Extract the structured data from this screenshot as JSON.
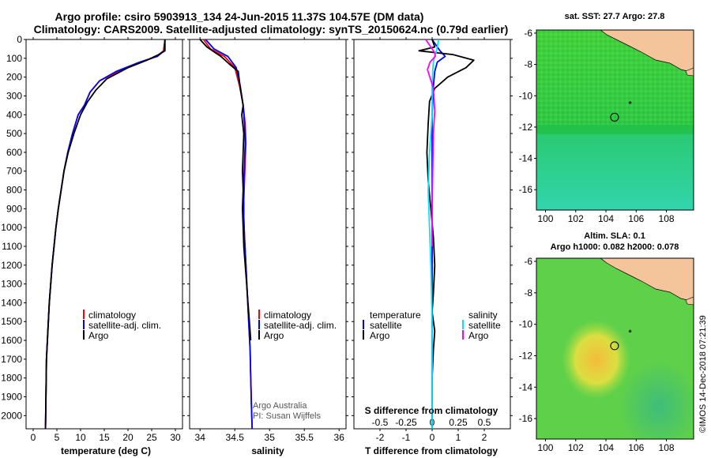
{
  "header": {
    "title_line1": "Argo profile: csiro 5903913_134 24-Jun-2015 11.37S 104.57E (DM data)",
    "title_line2": "Climatology: CARS2009. Satellite-adjusted climatology: synTS_20150624.nc (0.79d earlier)"
  },
  "colors": {
    "climatology": "#ff0000",
    "satellite_adj": "#0000ff",
    "argo": "#000000",
    "salinity_satellite": "#00e5ff",
    "salinity_argo": "#ff00ff",
    "land": "#f4c49a"
  },
  "footer": {
    "credit": "Argo Australia",
    "pi": "PI: Susan Wijffels",
    "stamp": "©IMOS 14-Dec-2018 07:21:39"
  },
  "chart_data": [
    {
      "type": "line",
      "panel": "temperature",
      "xlabel": "temperature (deg C)",
      "ylabel": "",
      "xlim": [
        -1.5,
        31.5
      ],
      "ylim": [
        2070,
        0
      ],
      "xticks": [
        0,
        5,
        10,
        15,
        20,
        25,
        30
      ],
      "yticks": [
        0,
        100,
        200,
        300,
        400,
        500,
        600,
        700,
        800,
        900,
        1000,
        1100,
        1200,
        1300,
        1400,
        1500,
        1600,
        1700,
        1800,
        1900,
        2000
      ],
      "legend": [
        "climatology",
        "satellite-adj. clim.",
        "Argo"
      ],
      "legend_position": "lower-right",
      "series": [
        {
          "name": "climatology",
          "color": "#ff0000",
          "x": [
            27.8,
            27.5,
            26,
            23,
            18,
            14,
            12,
            10.8,
            9.5,
            8.3,
            7.3,
            6.5,
            5.9,
            5.3,
            4.8,
            4.4,
            4.0,
            3.7,
            3.4,
            3.2,
            3.0,
            2.8,
            2.6
          ],
          "y": [
            0,
            60,
            90,
            120,
            170,
            220,
            280,
            350,
            400,
            500,
            600,
            700,
            800,
            900,
            1000,
            1100,
            1200,
            1300,
            1400,
            1500,
            1600,
            1700,
            2070
          ]
        },
        {
          "name": "satellite-adj. clim.",
          "color": "#0000ff",
          "x": [
            27.8,
            27.6,
            26.2,
            22.5,
            17.5,
            14,
            12,
            10.8,
            9.5,
            8.3,
            7.3,
            6.5,
            5.9,
            5.3,
            4.8,
            4.4,
            4.0,
            3.7,
            3.4,
            3.2,
            3.0,
            2.8,
            2.6
          ],
          "y": [
            0,
            60,
            90,
            120,
            170,
            220,
            280,
            350,
            400,
            500,
            600,
            700,
            800,
            900,
            1000,
            1100,
            1200,
            1300,
            1400,
            1500,
            1600,
            1700,
            2070
          ]
        },
        {
          "name": "Argo",
          "color": "#000000",
          "x": [
            27.8,
            27.8,
            26.5,
            24,
            20,
            15.5,
            13.2,
            11.5,
            10.0,
            8.6,
            7.4,
            6.5,
            5.9,
            5.3,
            4.8,
            4.4,
            4.0,
            3.7,
            3.4,
            3.2,
            3.0,
            2.8,
            2.6
          ],
          "y": [
            0,
            60,
            80,
            110,
            150,
            210,
            270,
            330,
            400,
            500,
            600,
            700,
            800,
            900,
            1000,
            1100,
            1200,
            1300,
            1400,
            1500,
            1600,
            1700,
            2070
          ]
        }
      ]
    },
    {
      "type": "line",
      "panel": "salinity",
      "xlabel": "salinity",
      "ylabel": "",
      "xlim": [
        33.85,
        36.1
      ],
      "ylim": [
        2070,
        0
      ],
      "xticks": [
        34,
        34.5,
        35,
        35.5,
        36
      ],
      "xtick_labels": [
        "34",
        "34.5",
        "35",
        "35.5",
        "36"
      ],
      "legend": [
        "climatology",
        "satellite-adj. clim.",
        "Argo"
      ],
      "legend_position": "lower-right",
      "series": [
        {
          "name": "climatology",
          "color": "#ff0000",
          "x": [
            34.05,
            34.15,
            34.35,
            34.5,
            34.57,
            34.62,
            34.65,
            34.66,
            34.65,
            34.64,
            34.63,
            34.63,
            34.64,
            34.66,
            34.68,
            34.7,
            34.72,
            34.73,
            34.74,
            34.75
          ],
          "y": [
            0,
            50,
            90,
            150,
            250,
            350,
            450,
            550,
            650,
            750,
            850,
            950,
            1050,
            1200,
            1350,
            1500,
            1650,
            1800,
            1950,
            2070
          ]
        },
        {
          "name": "satellite-adj. clim.",
          "color": "#0000ff",
          "x": [
            34.08,
            34.2,
            34.4,
            34.52,
            34.58,
            34.62,
            34.64,
            34.65,
            34.64,
            34.63,
            34.63,
            34.63,
            34.64,
            34.66,
            34.68,
            34.7,
            34.72,
            34.73,
            34.74,
            34.75
          ],
          "y": [
            0,
            50,
            90,
            150,
            250,
            350,
            450,
            550,
            650,
            750,
            850,
            950,
            1050,
            1200,
            1350,
            1500,
            1650,
            1800,
            1950,
            2070
          ]
        },
        {
          "name": "Argo",
          "color": "#000000",
          "x": [
            34.0,
            34.1,
            34.22,
            34.3,
            34.42,
            34.55,
            34.58,
            34.62,
            34.6,
            34.63,
            34.62,
            34.61,
            34.62,
            34.61,
            34.62,
            34.63,
            34.65,
            34.67,
            34.69,
            34.71,
            34.73
          ],
          "y": [
            0,
            40,
            70,
            90,
            130,
            170,
            260,
            350,
            400,
            500,
            600,
            700,
            800,
            900,
            1000,
            1100,
            1200,
            1300,
            1400,
            1500,
            1600
          ]
        }
      ]
    },
    {
      "type": "line",
      "panel": "differences",
      "xlabel": "T difference from climatology",
      "x2label": "S difference from climatology",
      "ylabel": "",
      "xlim": [
        -3,
        3
      ],
      "ylim": [
        2070,
        0
      ],
      "xticks": [
        -2,
        -1,
        0,
        1,
        2
      ],
      "x2ticks": [
        -0.5,
        -0.25,
        0,
        0.25,
        0.5
      ],
      "x2tick_labels": [
        "-0.5",
        "-0.25",
        "0",
        "0.25",
        "0.5"
      ],
      "legend_temperature": {
        "heading": "temperature",
        "items": [
          "satellite",
          "Argo"
        ]
      },
      "legend_salinity": {
        "heading": "salinity",
        "items": [
          "satellite",
          "Argo"
        ]
      },
      "legend_position": "lower",
      "series": [
        {
          "name": "T satellite",
          "color": "#0000ff",
          "x": [
            0,
            0.3,
            0.5,
            0.2,
            0.1,
            0.05,
            0.0,
            0.0,
            0.0,
            0.0,
            0.0,
            0.0,
            0.0
          ],
          "y": [
            0,
            60,
            90,
            120,
            170,
            250,
            400,
            600,
            900,
            1200,
            1500,
            1800,
            2070
          ]
        },
        {
          "name": "T Argo",
          "color": "#000000",
          "x": [
            0,
            0.1,
            -0.5,
            0.8,
            1.6,
            1.3,
            0.6,
            0.1,
            -0.1,
            -0.15,
            -0.2,
            -0.15,
            -0.05,
            0.05,
            0.1,
            0.05,
            0.0,
            0.1,
            0.05,
            0.0,
            0.0
          ],
          "y": [
            0,
            40,
            60,
            80,
            110,
            150,
            200,
            260,
            330,
            450,
            600,
            750,
            900,
            1050,
            1200,
            1350,
            1450,
            1550,
            1650,
            1800,
            2070
          ]
        },
        {
          "name": "S satellite",
          "color": "#00e5ff",
          "x": [
            0.25,
            0.17,
            0.1,
            0.05,
            0.02,
            0.0,
            0.0,
            -0.1,
            -0.15,
            -0.1,
            -0.05,
            0.0,
            0.0
          ],
          "y": [
            0,
            60,
            90,
            120,
            170,
            250,
            400,
            600,
            800,
            1000,
            1200,
            1500,
            2070
          ]
        },
        {
          "name": "S Argo",
          "color": "#ff00ff",
          "x": [
            -0.25,
            -0.05,
            0.1,
            0.12,
            -0.08,
            -0.18,
            0.05,
            0.1,
            0.05,
            0.02,
            0.0,
            0.0
          ],
          "y": [
            0,
            40,
            70,
            90,
            120,
            160,
            260,
            380,
            500,
            700,
            900,
            1100
          ]
        }
      ]
    },
    {
      "type": "heatmap",
      "panel": "sst_map",
      "title": "sat. SST: 27.7 Argo: 27.8",
      "xlim": [
        99.4,
        109.8
      ],
      "ylim": [
        -17.3,
        -5.8
      ],
      "xticks": [
        100,
        102,
        104,
        106,
        108
      ],
      "yticks": [
        -6,
        -8,
        -10,
        -12,
        -14,
        -16
      ],
      "argo_position": [
        104.57,
        -11.37
      ],
      "previous_position": [
        105.6,
        -10.5
      ]
    },
    {
      "type": "heatmap",
      "panel": "sla_map",
      "title": "Altim. SLA: 0.1",
      "subtitle": "Argo h1000: 0.082 h2000: 0.078",
      "xlim": [
        99.4,
        109.8
      ],
      "ylim": [
        -17.3,
        -5.8
      ],
      "xticks": [
        100,
        102,
        104,
        106,
        108
      ],
      "yticks": [
        -6,
        -8,
        -10,
        -12,
        -14,
        -16
      ],
      "argo_position": [
        104.57,
        -11.37
      ],
      "previous_position": [
        105.6,
        -10.5
      ]
    }
  ]
}
